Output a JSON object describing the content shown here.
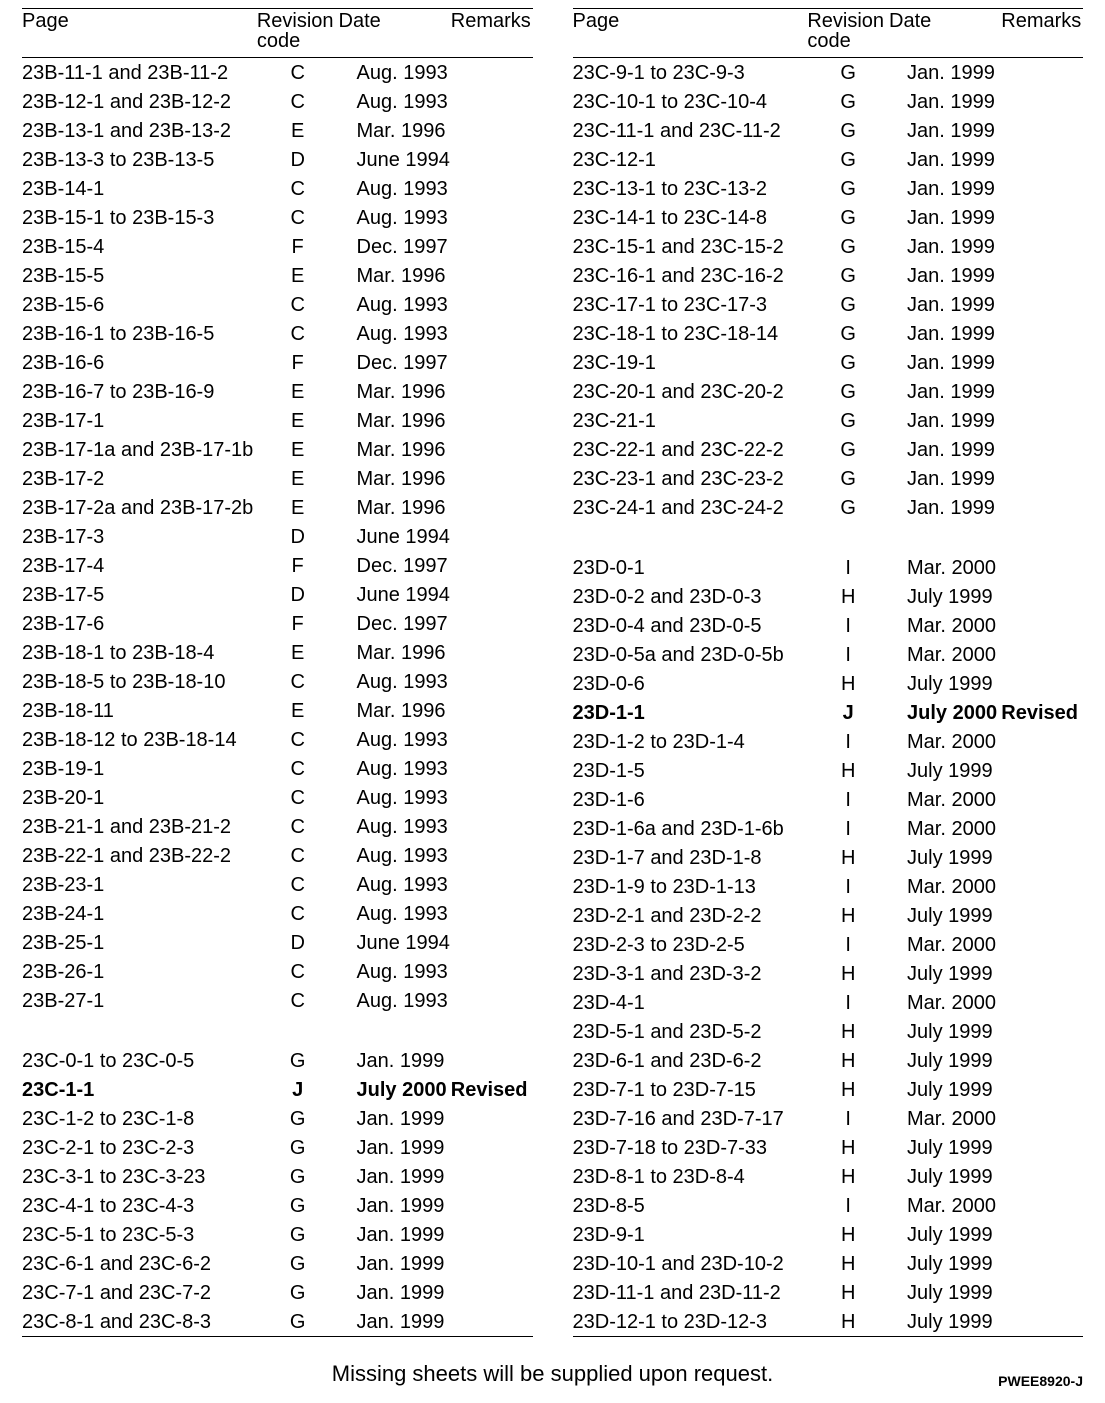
{
  "headers": {
    "page": "Page",
    "rev_line1": "Revision",
    "rev_line2": "code",
    "date": "Date",
    "remarks": "Remarks"
  },
  "footer_text": "Missing sheets will be supplied upon request.",
  "doc_number": "PWEE8920-J",
  "left_rows": [
    {
      "page": "23B-11-1 and 23B-11-2",
      "rev": "C",
      "date": "Aug. 1993",
      "remarks": ""
    },
    {
      "page": "23B-12-1 and 23B-12-2",
      "rev": "C",
      "date": "Aug. 1993",
      "remarks": ""
    },
    {
      "page": "23B-13-1 and 23B-13-2",
      "rev": "E",
      "date": "Mar. 1996",
      "remarks": ""
    },
    {
      "page": "23B-13-3 to 23B-13-5",
      "rev": "D",
      "date": "June 1994",
      "remarks": ""
    },
    {
      "page": "23B-14-1",
      "rev": "C",
      "date": "Aug. 1993",
      "remarks": ""
    },
    {
      "page": "23B-15-1 to 23B-15-3",
      "rev": "C",
      "date": "Aug. 1993",
      "remarks": ""
    },
    {
      "page": "23B-15-4",
      "rev": "F",
      "date": "Dec. 1997",
      "remarks": ""
    },
    {
      "page": "23B-15-5",
      "rev": "E",
      "date": "Mar. 1996",
      "remarks": ""
    },
    {
      "page": "23B-15-6",
      "rev": "C",
      "date": "Aug. 1993",
      "remarks": ""
    },
    {
      "page": "23B-16-1 to 23B-16-5",
      "rev": "C",
      "date": "Aug. 1993",
      "remarks": ""
    },
    {
      "page": "23B-16-6",
      "rev": "F",
      "date": "Dec. 1997",
      "remarks": ""
    },
    {
      "page": "23B-16-7 to 23B-16-9",
      "rev": "E",
      "date": "Mar. 1996",
      "remarks": ""
    },
    {
      "page": "23B-17-1",
      "rev": "E",
      "date": "Mar. 1996",
      "remarks": ""
    },
    {
      "page": "23B-17-1a and 23B-17-1b",
      "rev": "E",
      "date": "Mar. 1996",
      "remarks": ""
    },
    {
      "page": "23B-17-2",
      "rev": "E",
      "date": "Mar. 1996",
      "remarks": ""
    },
    {
      "page": "23B-17-2a and 23B-17-2b",
      "rev": "E",
      "date": "Mar. 1996",
      "remarks": ""
    },
    {
      "page": "23B-17-3",
      "rev": "D",
      "date": "June 1994",
      "remarks": ""
    },
    {
      "page": "23B-17-4",
      "rev": "F",
      "date": "Dec. 1997",
      "remarks": ""
    },
    {
      "page": "23B-17-5",
      "rev": "D",
      "date": "June 1994",
      "remarks": ""
    },
    {
      "page": "23B-17-6",
      "rev": "F",
      "date": "Dec. 1997",
      "remarks": ""
    },
    {
      "page": "23B-18-1 to 23B-18-4",
      "rev": "E",
      "date": "Mar. 1996",
      "remarks": ""
    },
    {
      "page": "23B-18-5 to 23B-18-10",
      "rev": "C",
      "date": "Aug. 1993",
      "remarks": ""
    },
    {
      "page": "23B-18-11",
      "rev": "E",
      "date": "Mar. 1996",
      "remarks": ""
    },
    {
      "page": "23B-18-12 to 23B-18-14",
      "rev": "C",
      "date": "Aug. 1993",
      "remarks": ""
    },
    {
      "page": "23B-19-1",
      "rev": "C",
      "date": "Aug. 1993",
      "remarks": ""
    },
    {
      "page": "23B-20-1",
      "rev": "C",
      "date": "Aug. 1993",
      "remarks": ""
    },
    {
      "page": "23B-21-1 and 23B-21-2",
      "rev": "C",
      "date": "Aug. 1993",
      "remarks": ""
    },
    {
      "page": "23B-22-1 and 23B-22-2",
      "rev": "C",
      "date": "Aug. 1993",
      "remarks": ""
    },
    {
      "page": "23B-23-1",
      "rev": "C",
      "date": "Aug. 1993",
      "remarks": ""
    },
    {
      "page": "23B-24-1",
      "rev": "C",
      "date": "Aug. 1993",
      "remarks": ""
    },
    {
      "page": "23B-25-1",
      "rev": "D",
      "date": "June 1994",
      "remarks": ""
    },
    {
      "page": "23B-26-1",
      "rev": "C",
      "date": "Aug. 1993",
      "remarks": ""
    },
    {
      "page": "23B-27-1",
      "rev": "C",
      "date": "Aug. 1993",
      "remarks": ""
    },
    {
      "spacer": true
    },
    {
      "page": "23C-0-1 to 23C-0-5",
      "rev": "G",
      "date": "Jan. 1999",
      "remarks": ""
    },
    {
      "page": "23C-1-1",
      "rev": "J",
      "date": "July 2000",
      "remarks": "Revised",
      "bold": true
    },
    {
      "page": "23C-1-2 to 23C-1-8",
      "rev": "G",
      "date": "Jan. 1999",
      "remarks": ""
    },
    {
      "page": "23C-2-1 to 23C-2-3",
      "rev": "G",
      "date": "Jan. 1999",
      "remarks": ""
    },
    {
      "page": "23C-3-1 to 23C-3-23",
      "rev": "G",
      "date": "Jan. 1999",
      "remarks": ""
    },
    {
      "page": "23C-4-1 to 23C-4-3",
      "rev": "G",
      "date": "Jan. 1999",
      "remarks": ""
    },
    {
      "page": "23C-5-1 to 23C-5-3",
      "rev": "G",
      "date": "Jan. 1999",
      "remarks": ""
    },
    {
      "page": "23C-6-1 and 23C-6-2",
      "rev": "G",
      "date": "Jan. 1999",
      "remarks": ""
    },
    {
      "page": "23C-7-1 and 23C-7-2",
      "rev": "G",
      "date": "Jan. 1999",
      "remarks": ""
    },
    {
      "page": "23C-8-1 and 23C-8-3",
      "rev": "G",
      "date": "Jan. 1999",
      "remarks": ""
    }
  ],
  "right_rows": [
    {
      "page": "23C-9-1 to 23C-9-3",
      "rev": "G",
      "date": "Jan. 1999",
      "remarks": ""
    },
    {
      "page": "23C-10-1 to 23C-10-4",
      "rev": "G",
      "date": "Jan. 1999",
      "remarks": ""
    },
    {
      "page": "23C-11-1 and 23C-11-2",
      "rev": "G",
      "date": "Jan. 1999",
      "remarks": ""
    },
    {
      "page": "23C-12-1",
      "rev": "G",
      "date": "Jan. 1999",
      "remarks": ""
    },
    {
      "page": "23C-13-1 to 23C-13-2",
      "rev": "G",
      "date": "Jan. 1999",
      "remarks": ""
    },
    {
      "page": "23C-14-1 to 23C-14-8",
      "rev": "G",
      "date": "Jan. 1999",
      "remarks": ""
    },
    {
      "page": "23C-15-1 and 23C-15-2",
      "rev": "G",
      "date": "Jan. 1999",
      "remarks": ""
    },
    {
      "page": "23C-16-1 and 23C-16-2",
      "rev": "G",
      "date": "Jan. 1999",
      "remarks": ""
    },
    {
      "page": "23C-17-1 to 23C-17-3",
      "rev": "G",
      "date": "Jan. 1999",
      "remarks": ""
    },
    {
      "page": "23C-18-1 to 23C-18-14",
      "rev": "G",
      "date": "Jan. 1999",
      "remarks": ""
    },
    {
      "page": "23C-19-1",
      "rev": "G",
      "date": "Jan. 1999",
      "remarks": ""
    },
    {
      "page": "23C-20-1 and 23C-20-2",
      "rev": "G",
      "date": "Jan. 1999",
      "remarks": ""
    },
    {
      "page": "23C-21-1",
      "rev": "G",
      "date": "Jan. 1999",
      "remarks": ""
    },
    {
      "page": "23C-22-1 and 23C-22-2",
      "rev": "G",
      "date": "Jan. 1999",
      "remarks": ""
    },
    {
      "page": "23C-23-1 and 23C-23-2",
      "rev": "G",
      "date": "Jan. 1999",
      "remarks": ""
    },
    {
      "page": "23C-24-1 and 23C-24-2",
      "rev": "G",
      "date": "Jan. 1999",
      "remarks": ""
    },
    {
      "spacer": true
    },
    {
      "page": "23D-0-1",
      "rev": "I",
      "date": "Mar. 2000",
      "remarks": ""
    },
    {
      "page": "23D-0-2 and 23D-0-3",
      "rev": "H",
      "date": "July 1999",
      "remarks": ""
    },
    {
      "page": "23D-0-4 and 23D-0-5",
      "rev": "I",
      "date": "Mar. 2000",
      "remarks": ""
    },
    {
      "page": "23D-0-5a and 23D-0-5b",
      "rev": "I",
      "date": "Mar. 2000",
      "remarks": ""
    },
    {
      "page": "23D-0-6",
      "rev": "H",
      "date": "July 1999",
      "remarks": ""
    },
    {
      "page": "23D-1-1",
      "rev": "J",
      "date": "July 2000",
      "remarks": "Revised",
      "bold": true
    },
    {
      "page": "23D-1-2 to 23D-1-4",
      "rev": "I",
      "date": "Mar. 2000",
      "remarks": ""
    },
    {
      "page": "23D-1-5",
      "rev": "H",
      "date": "July 1999",
      "remarks": ""
    },
    {
      "page": "23D-1-6",
      "rev": "I",
      "date": "Mar. 2000",
      "remarks": ""
    },
    {
      "page": "23D-1-6a and 23D-1-6b",
      "rev": "I",
      "date": "Mar. 2000",
      "remarks": ""
    },
    {
      "page": "23D-1-7 and 23D-1-8",
      "rev": "H",
      "date": "July 1999",
      "remarks": ""
    },
    {
      "page": "23D-1-9 to 23D-1-13",
      "rev": "I",
      "date": "Mar. 2000",
      "remarks": ""
    },
    {
      "page": "23D-2-1 and 23D-2-2",
      "rev": "H",
      "date": "July 1999",
      "remarks": ""
    },
    {
      "page": "23D-2-3 to 23D-2-5",
      "rev": "I",
      "date": "Mar. 2000",
      "remarks": ""
    },
    {
      "page": "23D-3-1 and 23D-3-2",
      "rev": "H",
      "date": "July 1999",
      "remarks": ""
    },
    {
      "page": "23D-4-1",
      "rev": "I",
      "date": "Mar. 2000",
      "remarks": ""
    },
    {
      "page": "23D-5-1 and 23D-5-2",
      "rev": "H",
      "date": "July 1999",
      "remarks": ""
    },
    {
      "page": "23D-6-1 and 23D-6-2",
      "rev": "H",
      "date": "July 1999",
      "remarks": ""
    },
    {
      "page": "23D-7-1 to 23D-7-15",
      "rev": "H",
      "date": "July 1999",
      "remarks": ""
    },
    {
      "page": "23D-7-16 and 23D-7-17",
      "rev": "I",
      "date": "Mar. 2000",
      "remarks": ""
    },
    {
      "page": "23D-7-18 to 23D-7-33",
      "rev": "H",
      "date": "July 1999",
      "remarks": ""
    },
    {
      "page": "23D-8-1 to 23D-8-4",
      "rev": "H",
      "date": "July 1999",
      "remarks": ""
    },
    {
      "page": "23D-8-5",
      "rev": "I",
      "date": "Mar. 2000",
      "remarks": ""
    },
    {
      "page": "23D-9-1",
      "rev": "H",
      "date": "July 1999",
      "remarks": ""
    },
    {
      "page": "23D-10-1 and 23D-10-2",
      "rev": "H",
      "date": "July 1999",
      "remarks": ""
    },
    {
      "page": "23D-11-1 and 23D-11-2",
      "rev": "H",
      "date": "July 1999",
      "remarks": ""
    },
    {
      "page": "23D-12-1 to 23D-12-3",
      "rev": "H",
      "date": "July 1999",
      "remarks": ""
    }
  ]
}
